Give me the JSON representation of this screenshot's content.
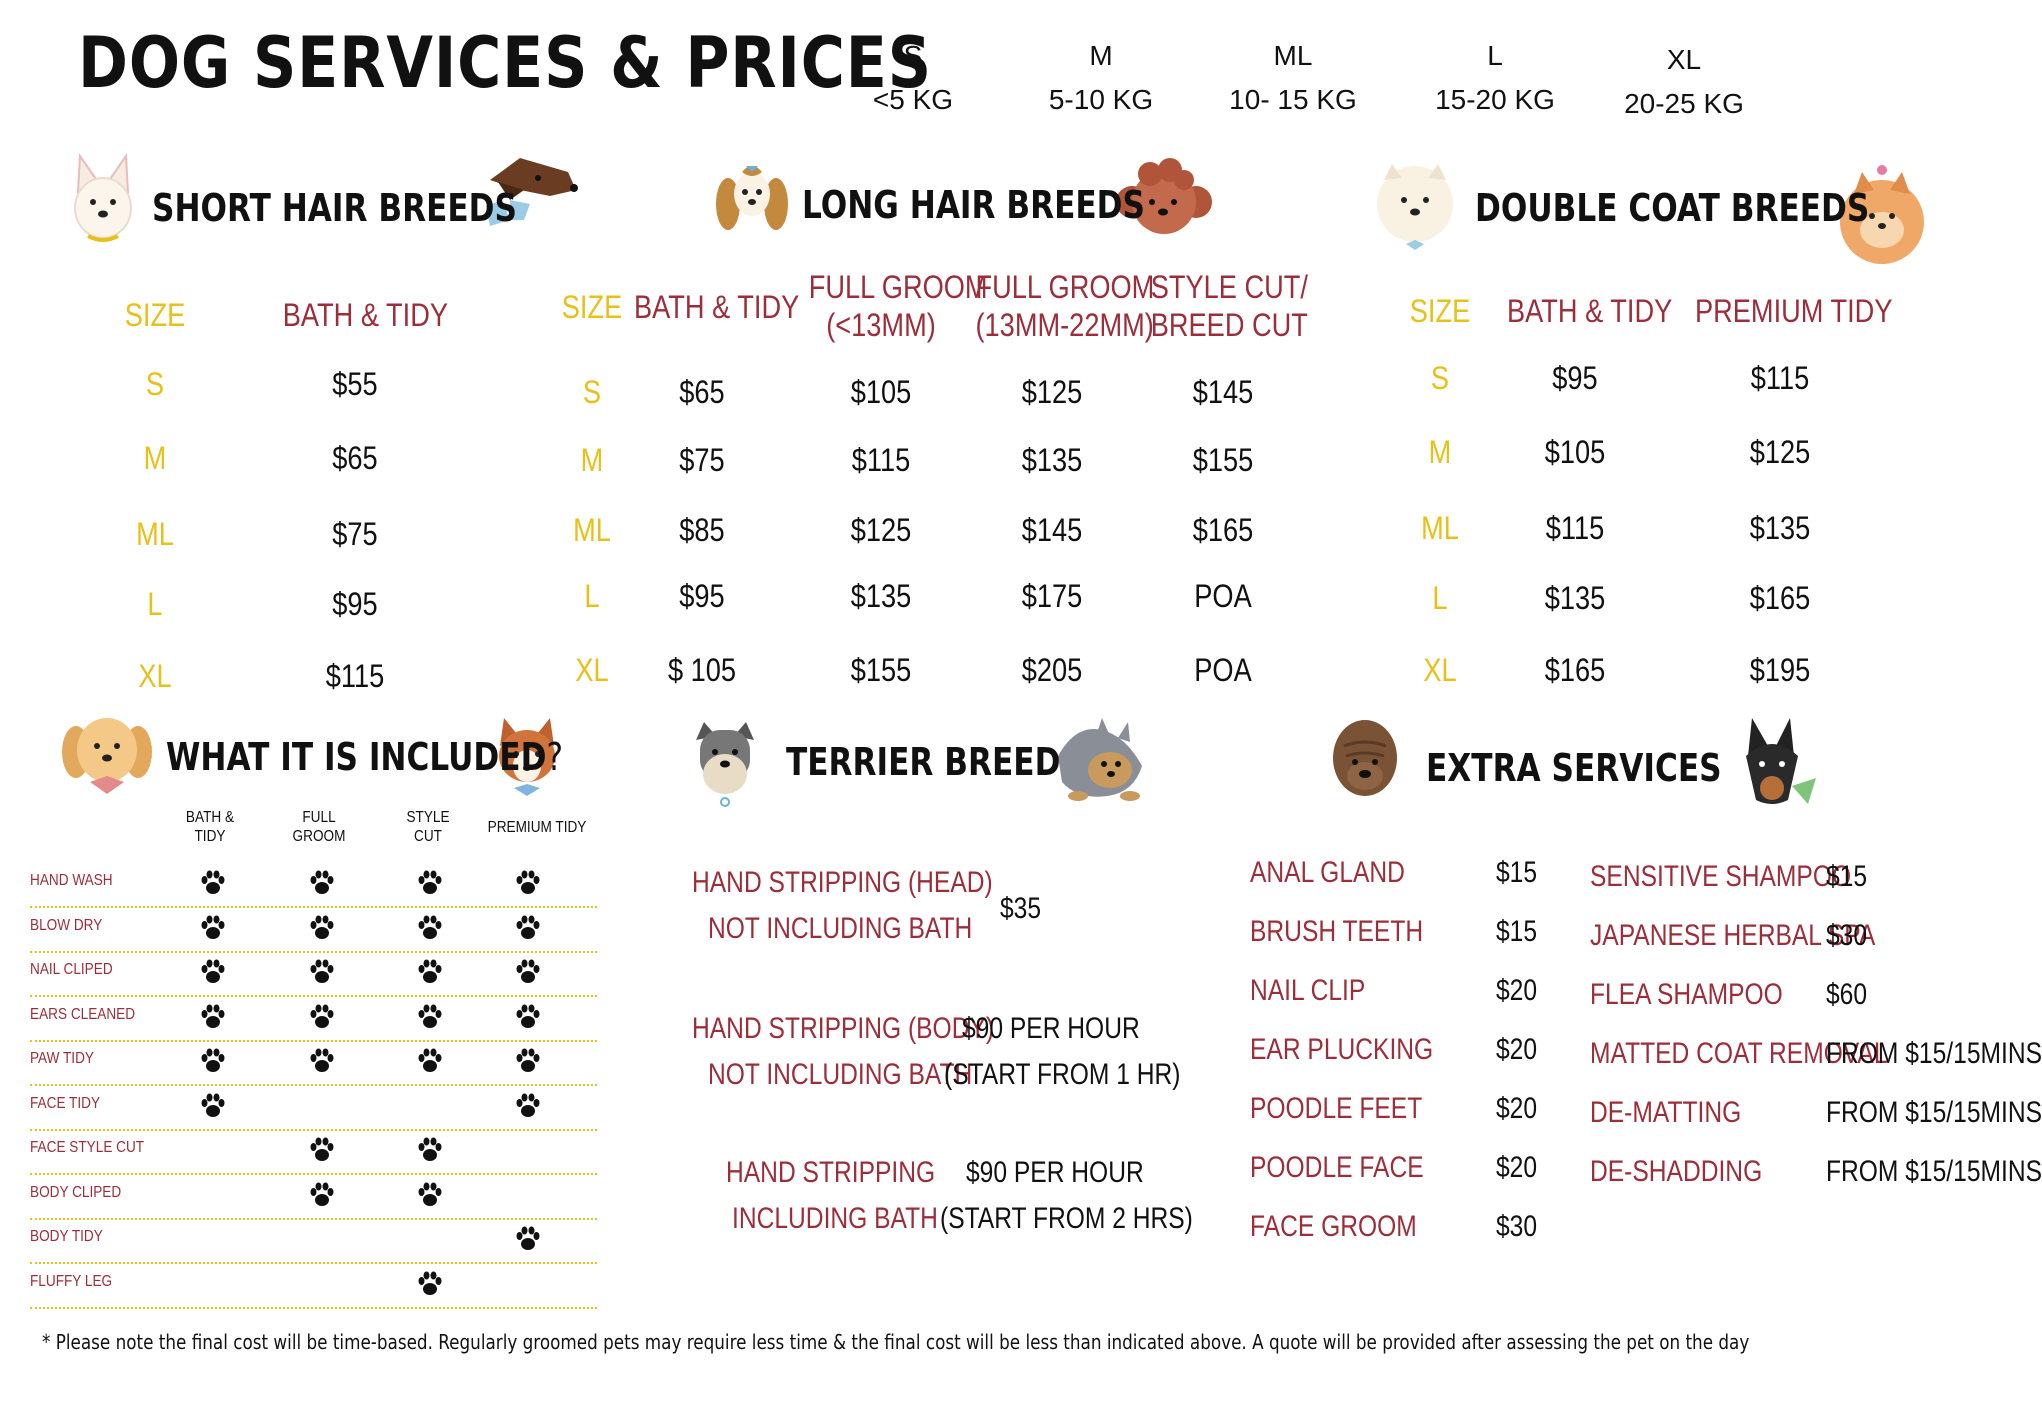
{
  "title": "DOG SERVICES & PRICES",
  "sizes": [
    {
      "code": "S",
      "range": "<5 KG"
    },
    {
      "code": "M",
      "range": "5-10 KG"
    },
    {
      "code": "ML",
      "range": "10- 15 KG"
    },
    {
      "code": "L",
      "range": "15-20 KG"
    },
    {
      "code": "XL",
      "range": "20-25 KG"
    }
  ],
  "colors": {
    "accent_red": "#9b2e3a",
    "accent_yellow": "#e7c019"
  },
  "short_hair": {
    "title": "SHORT HAIR BREEDS",
    "headers": {
      "size": "SIZE",
      "bath": "BATH & TIDY"
    },
    "rows": [
      {
        "size": "S",
        "bath": "$55"
      },
      {
        "size": "M",
        "bath": "$65"
      },
      {
        "size": "ML",
        "bath": "$75"
      },
      {
        "size": "L",
        "bath": "$95"
      },
      {
        "size": "XL",
        "bath": "$115"
      }
    ]
  },
  "long_hair": {
    "title": "LONG HAIR BREEDS",
    "headers": {
      "size": "SIZE",
      "bath": "BATH & TIDY",
      "full1_a": "FULL GROOM",
      "full1_b": "(<13MM)",
      "full2_a": "FULL GROOM",
      "full2_b": "(13MM-22MM)",
      "style_a": "STYLE CUT/",
      "style_b": "BREED CUT"
    },
    "rows": [
      {
        "size": "S",
        "bath": "$65",
        "full1": "$105",
        "full2": "$125",
        "style": "$145"
      },
      {
        "size": "M",
        "bath": "$75",
        "full1": "$115",
        "full2": "$135",
        "style": "$155"
      },
      {
        "size": "ML",
        "bath": "$85",
        "full1": "$125",
        "full2": "$145",
        "style": "$165"
      },
      {
        "size": "L",
        "bath": "$95",
        "full1": "$135",
        "full2": "$175",
        "style": "POA"
      },
      {
        "size": "XL",
        "bath": "$ 105",
        "full1": "$155",
        "full2": "$205",
        "style": "POA"
      }
    ]
  },
  "double_coat": {
    "title": "DOUBLE COAT  BREEDS",
    "headers": {
      "size": "SIZE",
      "bath": "BATH & TIDY",
      "premium": "PREMIUM TIDY"
    },
    "rows": [
      {
        "size": "S",
        "bath": "$95",
        "premium": "$115"
      },
      {
        "size": "M",
        "bath": "$105",
        "premium": "$125"
      },
      {
        "size": "ML",
        "bath": "$115",
        "premium": "$135"
      },
      {
        "size": "L",
        "bath": "$135",
        "premium": "$165"
      },
      {
        "size": "XL",
        "bath": "$165",
        "premium": "$195"
      }
    ]
  },
  "included": {
    "title": "WHAT IT IS INCLUDED",
    "qmark": "?",
    "columns": [
      {
        "a": "BATH &",
        "b": "TIDY"
      },
      {
        "a": "FULL",
        "b": "GROOM"
      },
      {
        "a": "STYLE",
        "b": "CUT"
      },
      {
        "a": "PREMIUM TIDY",
        "b": ""
      }
    ],
    "rows": [
      {
        "label": "HAND WASH",
        "marks": [
          true,
          true,
          true,
          true
        ]
      },
      {
        "label": "BLOW DRY",
        "marks": [
          true,
          true,
          true,
          true
        ]
      },
      {
        "label": "NAIL CLIPED",
        "marks": [
          true,
          true,
          true,
          true
        ]
      },
      {
        "label": "EARS CLEANED",
        "marks": [
          true,
          true,
          true,
          true
        ]
      },
      {
        "label": "PAW TIDY",
        "marks": [
          true,
          true,
          true,
          true
        ]
      },
      {
        "label": "FACE TIDY",
        "marks": [
          true,
          false,
          false,
          true
        ]
      },
      {
        "label": "FACE STYLE CUT",
        "marks": [
          false,
          true,
          true,
          false
        ]
      },
      {
        "label": "BODY CLIPED",
        "marks": [
          false,
          true,
          true,
          false
        ]
      },
      {
        "label": "BODY TIDY",
        "marks": [
          false,
          false,
          false,
          true
        ]
      },
      {
        "label": "FLUFFY LEG",
        "marks": [
          false,
          false,
          true,
          false
        ]
      }
    ]
  },
  "terrier": {
    "title": "TERRIER BREED",
    "items": [
      {
        "name_a": "HAND STRIPPING (HEAD)",
        "name_b": "NOT INCLUDING BATH",
        "price_a": "$35",
        "price_b": ""
      },
      {
        "name_a": "HAND STRIPPING (BODY)",
        "name_b": "NOT INCLUDING BATH",
        "price_a": "$90  PER HOUR",
        "price_b": "(START FROM 1 HR)"
      },
      {
        "name_a": "HAND STRIPPING",
        "name_b": "INCLUDING BATH",
        "price_a": "$90 PER HOUR",
        "price_b": "(START FROM 2 HRS)"
      }
    ]
  },
  "extra": {
    "title": "EXTRA SERVICES",
    "left": [
      {
        "name": "ANAL GLAND",
        "price": "$15"
      },
      {
        "name": "BRUSH TEETH",
        "price": "$15"
      },
      {
        "name": "NAIL CLIP",
        "price": "$20"
      },
      {
        "name": "EAR PLUCKING",
        "price": "$20"
      },
      {
        "name": "POODLE FEET",
        "price": "$20"
      },
      {
        "name": "POODLE FACE",
        "price": "$20"
      },
      {
        "name": "FACE GROOM",
        "price": "$30"
      }
    ],
    "right": [
      {
        "name": "SENSITIVE SHAMPOO",
        "price": "$15"
      },
      {
        "name": "JAPANESE HERBAL SPA",
        "price": "$30"
      },
      {
        "name": "FLEA SHAMPOO",
        "price": "$60"
      },
      {
        "name": "MATTED COAT REMOVAL",
        "price": "FROM $15/15MINS"
      },
      {
        "name": "DE-MATTING",
        "price": "FROM $15/15MINS"
      },
      {
        "name": "DE-SHADDING",
        "price": "FROM $15/15MINS"
      }
    ]
  },
  "footnote": "* Please note the final cost will be time-based. Regularly groomed pets may require less time & the final cost will be less than indicated above. A quote will be provided after assessing the pet on the day",
  "icons": [
    "french-bulldog-icon",
    "dachshund-icon",
    "spaniel-icon",
    "poodle-icon",
    "samoyed-icon",
    "pomeranian-icon",
    "golden-dog-icon",
    "corgi-icon",
    "schnauzer-icon",
    "yorkie-icon",
    "shar-pei-icon",
    "doberman-icon",
    "paw-icon"
  ]
}
